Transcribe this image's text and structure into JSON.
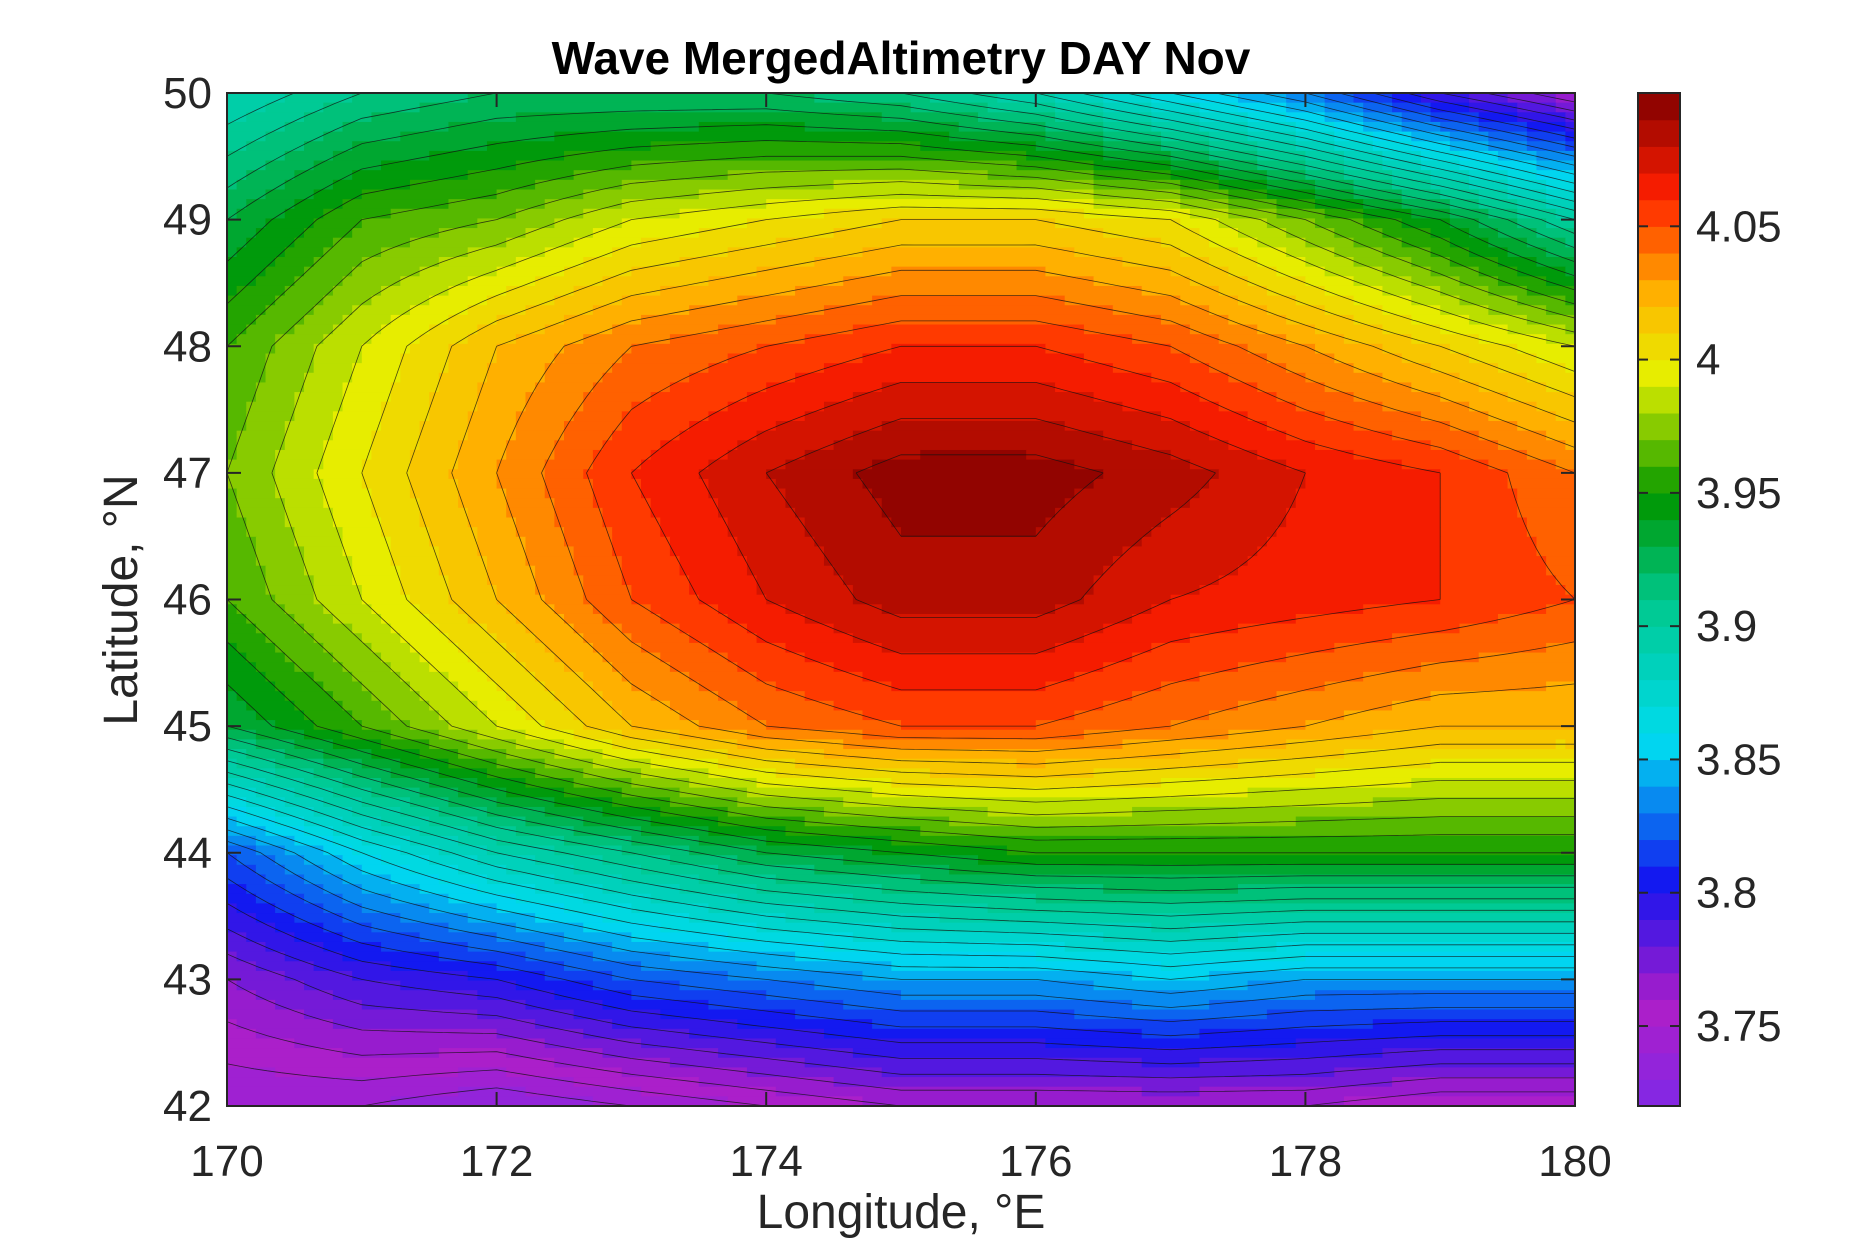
{
  "chart_data": {
    "type": "contour",
    "title": "Wave MergedAltimetry DAY Nov",
    "xlabel": "Longitude, °E",
    "ylabel": "Latitude, °N",
    "xlim": [
      170,
      180
    ],
    "ylim": [
      42,
      50
    ],
    "xticks": [
      170,
      172,
      174,
      176,
      178,
      180
    ],
    "yticks": [
      42,
      43,
      44,
      45,
      46,
      47,
      48,
      49,
      50
    ],
    "colorbar": {
      "clim": [
        3.72,
        4.1
      ],
      "ticks": [
        3.75,
        3.8,
        3.85,
        3.9,
        3.95,
        4,
        4.05
      ],
      "tick_labels": [
        "3.75",
        "3.8",
        "3.85",
        "3.9",
        "3.95",
        "4",
        "4.05"
      ],
      "colormap": "jet-like (purple-blue-cyan-green-yellow-red-dark red)"
    },
    "grid_step_deg": 1,
    "x": [
      170,
      171,
      172,
      173,
      174,
      175,
      176,
      177,
      178,
      179,
      180
    ],
    "y": [
      42,
      43,
      44,
      45,
      46,
      47,
      48,
      49,
      50
    ],
    "z": [
      [
        3.74,
        3.74,
        3.73,
        3.74,
        3.75,
        3.76,
        3.76,
        3.76,
        3.76,
        3.75,
        3.75
      ],
      [
        3.77,
        3.79,
        3.8,
        3.82,
        3.83,
        3.84,
        3.84,
        3.85,
        3.84,
        3.84,
        3.84
      ],
      [
        3.82,
        3.86,
        3.89,
        3.91,
        3.93,
        3.94,
        3.95,
        3.95,
        3.95,
        3.95,
        3.95
      ],
      [
        3.93,
        3.96,
        3.99,
        4.02,
        4.04,
        4.05,
        4.05,
        4.04,
        4.03,
        4.02,
        4.02
      ],
      [
        3.96,
        3.99,
        4.02,
        4.05,
        4.07,
        4.085,
        4.085,
        4.07,
        4.065,
        4.06,
        4.05
      ],
      [
        3.97,
        4.0,
        4.03,
        4.06,
        4.08,
        4.095,
        4.095,
        4.085,
        4.07,
        4.06,
        4.04
      ],
      [
        3.96,
        3.99,
        4.02,
        4.04,
        4.05,
        4.06,
        4.06,
        4.05,
        4.03,
        4.01,
        3.99
      ],
      [
        3.93,
        3.96,
        3.97,
        3.99,
        4.0,
        4.01,
        4.01,
        4.0,
        3.97,
        3.94,
        3.9
      ],
      [
        3.89,
        3.91,
        3.92,
        3.92,
        3.92,
        3.91,
        3.89,
        3.86,
        3.83,
        3.79,
        3.76
      ]
    ]
  }
}
